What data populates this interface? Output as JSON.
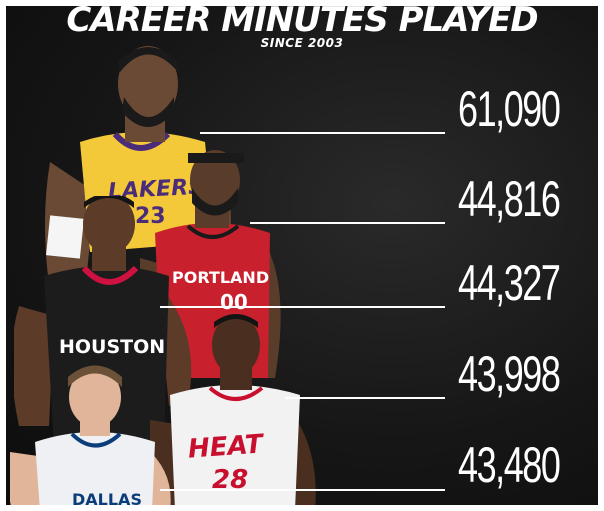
{
  "header": {
    "title": "CAREER MINUTES PLAYED",
    "subtitle": "SINCE 2003"
  },
  "stats": [
    {
      "value": "61,090",
      "jersey": "LAKERS"
    },
    {
      "value": "44,816",
      "jersey": "PORTLAND"
    },
    {
      "value": "44,327",
      "jersey": "HOUSTON"
    },
    {
      "value": "43,998",
      "jersey": "HEAT"
    },
    {
      "value": "43,480",
      "jersey": "DALLAS"
    }
  ],
  "jersey_numbers": {
    "portland": "00",
    "heat": "28",
    "lakers": "23"
  },
  "colors": {
    "lakers_gold": "#f3c93a",
    "lakers_purple": "#4b2c7a",
    "portland_red": "#c8202c",
    "houston_black": "#1c1c1c",
    "houston_red": "#ce1141",
    "heat_white": "#f2f2f2",
    "heat_red": "#c8102e",
    "dallas_white": "#eef0f3",
    "dallas_blue": "#0a3d7a"
  }
}
